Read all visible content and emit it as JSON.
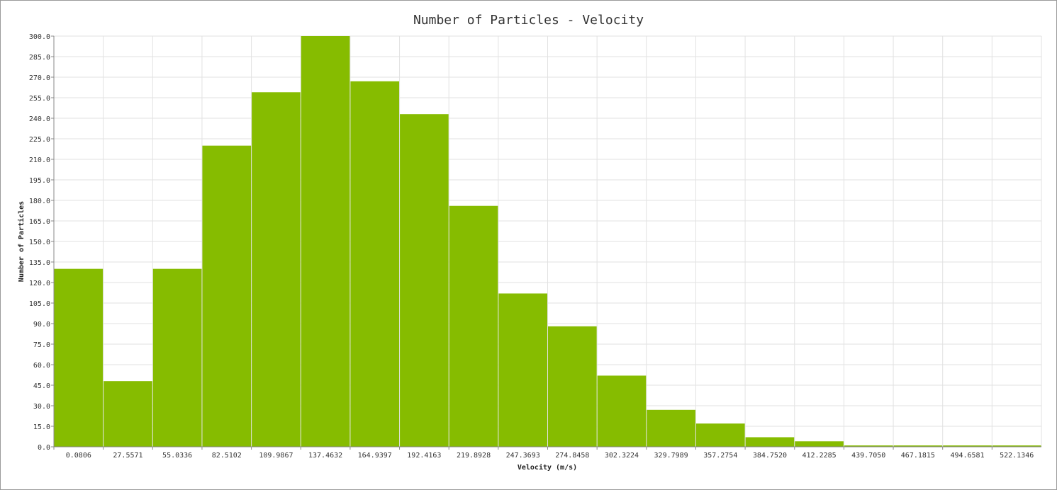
{
  "chart_data": {
    "type": "bar",
    "title": "Number of Particles - Velocity",
    "xlabel": "Velocity (m/s)",
    "ylabel": "Number of Particles",
    "ylim": [
      0,
      300
    ],
    "ytick_labels": [
      "0.0",
      "15.0",
      "30.0",
      "45.0",
      "60.0",
      "75.0",
      "90.0",
      "105.0",
      "120.0",
      "135.0",
      "150.0",
      "165.0",
      "180.0",
      "195.0",
      "210.0",
      "225.0",
      "240.0",
      "255.0",
      "270.0",
      "285.0",
      "300.0"
    ],
    "categories": [
      "0.0806",
      "27.5571",
      "55.0336",
      "82.5102",
      "109.9867",
      "137.4632",
      "164.9397",
      "192.4163",
      "219.8928",
      "247.3693",
      "274.8458",
      "302.3224",
      "329.7989",
      "357.2754",
      "384.7520",
      "412.2285",
      "439.7050",
      "467.1815",
      "494.6581",
      "522.1346"
    ],
    "values": [
      130,
      48,
      130,
      220,
      259,
      300,
      267,
      243,
      176,
      112,
      88,
      52,
      27,
      17,
      7,
      4,
      1,
      1,
      1,
      1
    ],
    "grid": true,
    "bar_color": "#86bc00",
    "grid_color": "#e2e2e2"
  }
}
